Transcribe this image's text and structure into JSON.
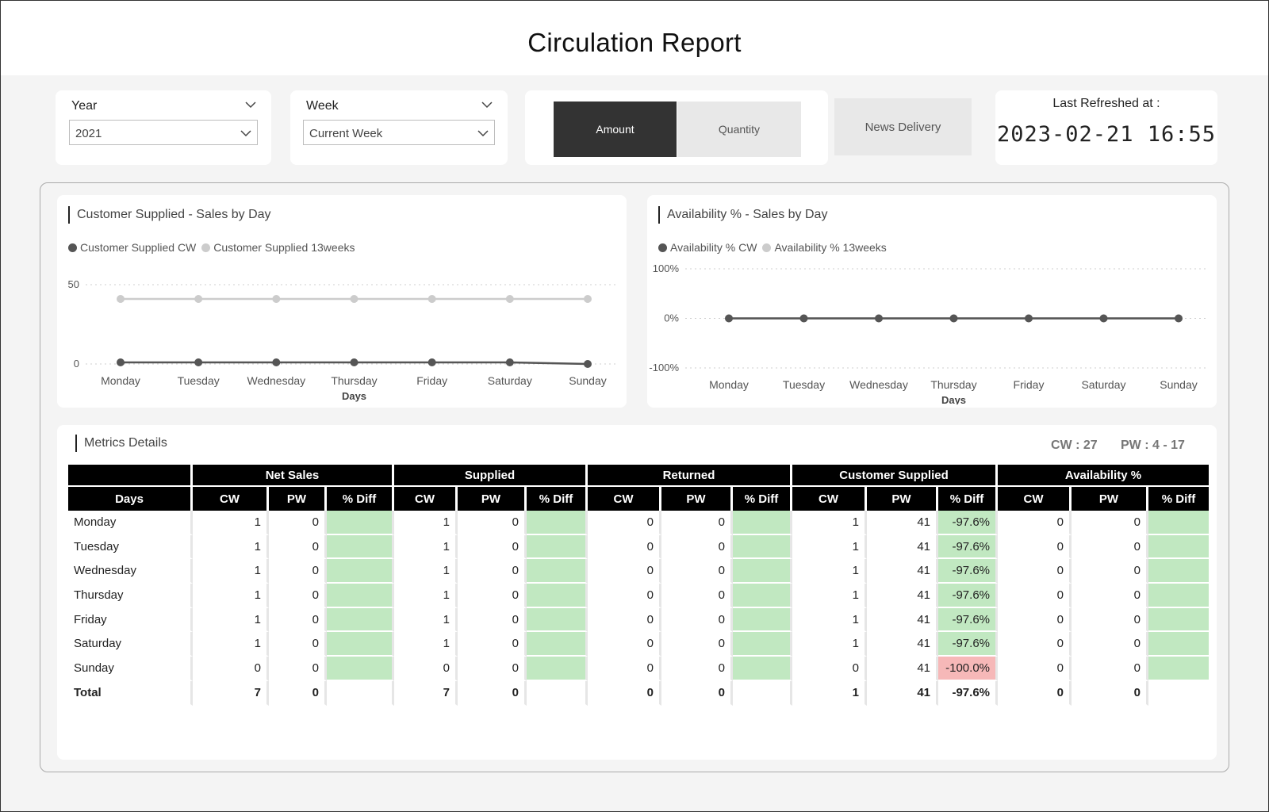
{
  "header": {
    "title": "Circulation Report"
  },
  "slicers": {
    "year": {
      "title": "Year",
      "value": "2021"
    },
    "week": {
      "title": "Week",
      "value": "Current Week"
    }
  },
  "toggle": {
    "amount": "Amount",
    "quantity": "Quantity",
    "active": "Amount"
  },
  "news_delivery": "News Delivery",
  "refresh": {
    "label": "Last Refreshed at :",
    "value": "2023-02-21 16:55"
  },
  "colors": {
    "cw": "#555555",
    "weeks13": "#cccccc",
    "green": "#c1e8c1",
    "red": "#f6b8b8"
  },
  "chart_data": [
    {
      "type": "line",
      "title": "Customer Supplied - Sales by Day",
      "xlabel": "Days",
      "ylabel": "",
      "x": [
        "Monday",
        "Tuesday",
        "Wednesday",
        "Thursday",
        "Friday",
        "Saturday",
        "Sunday"
      ],
      "yticks": [
        "0",
        "50"
      ],
      "ylim": [
        0,
        50
      ],
      "legend_position": "top-left",
      "grid": true,
      "series": [
        {
          "name": "Customer Supplied CW",
          "values": [
            1,
            1,
            1,
            1,
            1,
            1,
            0
          ]
        },
        {
          "name": "Customer Supplied 13weeks",
          "values": [
            41,
            41,
            41,
            41,
            41,
            41,
            41
          ]
        }
      ]
    },
    {
      "type": "line",
      "title": "Availability % - Sales by Day",
      "xlabel": "Days",
      "ylabel": "",
      "x": [
        "Monday",
        "Tuesday",
        "Wednesday",
        "Thursday",
        "Friday",
        "Saturday",
        "Sunday"
      ],
      "yticks": [
        "-100%",
        "0%",
        "100%"
      ],
      "ylim": [
        -100,
        100
      ],
      "legend_position": "top-left",
      "grid": true,
      "series": [
        {
          "name": "Availability % CW",
          "values": [
            0,
            0,
            0,
            0,
            0,
            0,
            0
          ]
        },
        {
          "name": "Availability % 13weeks",
          "values": [
            0,
            0,
            0,
            0,
            0,
            0,
            0
          ]
        }
      ]
    }
  ],
  "metrics": {
    "title": "Metrics Details",
    "cw_label": "CW : 27",
    "pw_label": "PW : 4 - 17",
    "groups": [
      "Net Sales",
      "Supplied",
      "Returned",
      "Customer Supplied",
      "Availability %"
    ],
    "columns": [
      "Days",
      "CW",
      "PW",
      "% Diff",
      "CW",
      "PW",
      "% Diff",
      "CW",
      "PW",
      "% Diff",
      "CW",
      "PW",
      "% Diff",
      "CW",
      "PW",
      "% Diff"
    ],
    "rows": [
      {
        "day": "Monday",
        "cells": [
          "1",
          "0",
          "",
          "1",
          "0",
          "",
          "0",
          "0",
          "",
          "1",
          "41",
          "-97.6%",
          "0",
          "0",
          ""
        ]
      },
      {
        "day": "Tuesday",
        "cells": [
          "1",
          "0",
          "",
          "1",
          "0",
          "",
          "0",
          "0",
          "",
          "1",
          "41",
          "-97.6%",
          "0",
          "0",
          ""
        ]
      },
      {
        "day": "Wednesday",
        "cells": [
          "1",
          "0",
          "",
          "1",
          "0",
          "",
          "0",
          "0",
          "",
          "1",
          "41",
          "-97.6%",
          "0",
          "0",
          ""
        ]
      },
      {
        "day": "Thursday",
        "cells": [
          "1",
          "0",
          "",
          "1",
          "0",
          "",
          "0",
          "0",
          "",
          "1",
          "41",
          "-97.6%",
          "0",
          "0",
          ""
        ]
      },
      {
        "day": "Friday",
        "cells": [
          "1",
          "0",
          "",
          "1",
          "0",
          "",
          "0",
          "0",
          "",
          "1",
          "41",
          "-97.6%",
          "0",
          "0",
          ""
        ]
      },
      {
        "day": "Saturday",
        "cells": [
          "1",
          "0",
          "",
          "1",
          "0",
          "",
          "0",
          "0",
          "",
          "1",
          "41",
          "-97.6%",
          "0",
          "0",
          ""
        ]
      },
      {
        "day": "Sunday",
        "cells": [
          "0",
          "0",
          "",
          "0",
          "0",
          "",
          "0",
          "0",
          "",
          "0",
          "41",
          "-100.0%",
          "0",
          "0",
          ""
        ]
      }
    ],
    "total": {
      "day": "Total",
      "cells": [
        "7",
        "0",
        "",
        "7",
        "0",
        "",
        "0",
        "0",
        "",
        "1",
        "41",
        "-97.6%",
        "0",
        "0",
        ""
      ]
    }
  }
}
